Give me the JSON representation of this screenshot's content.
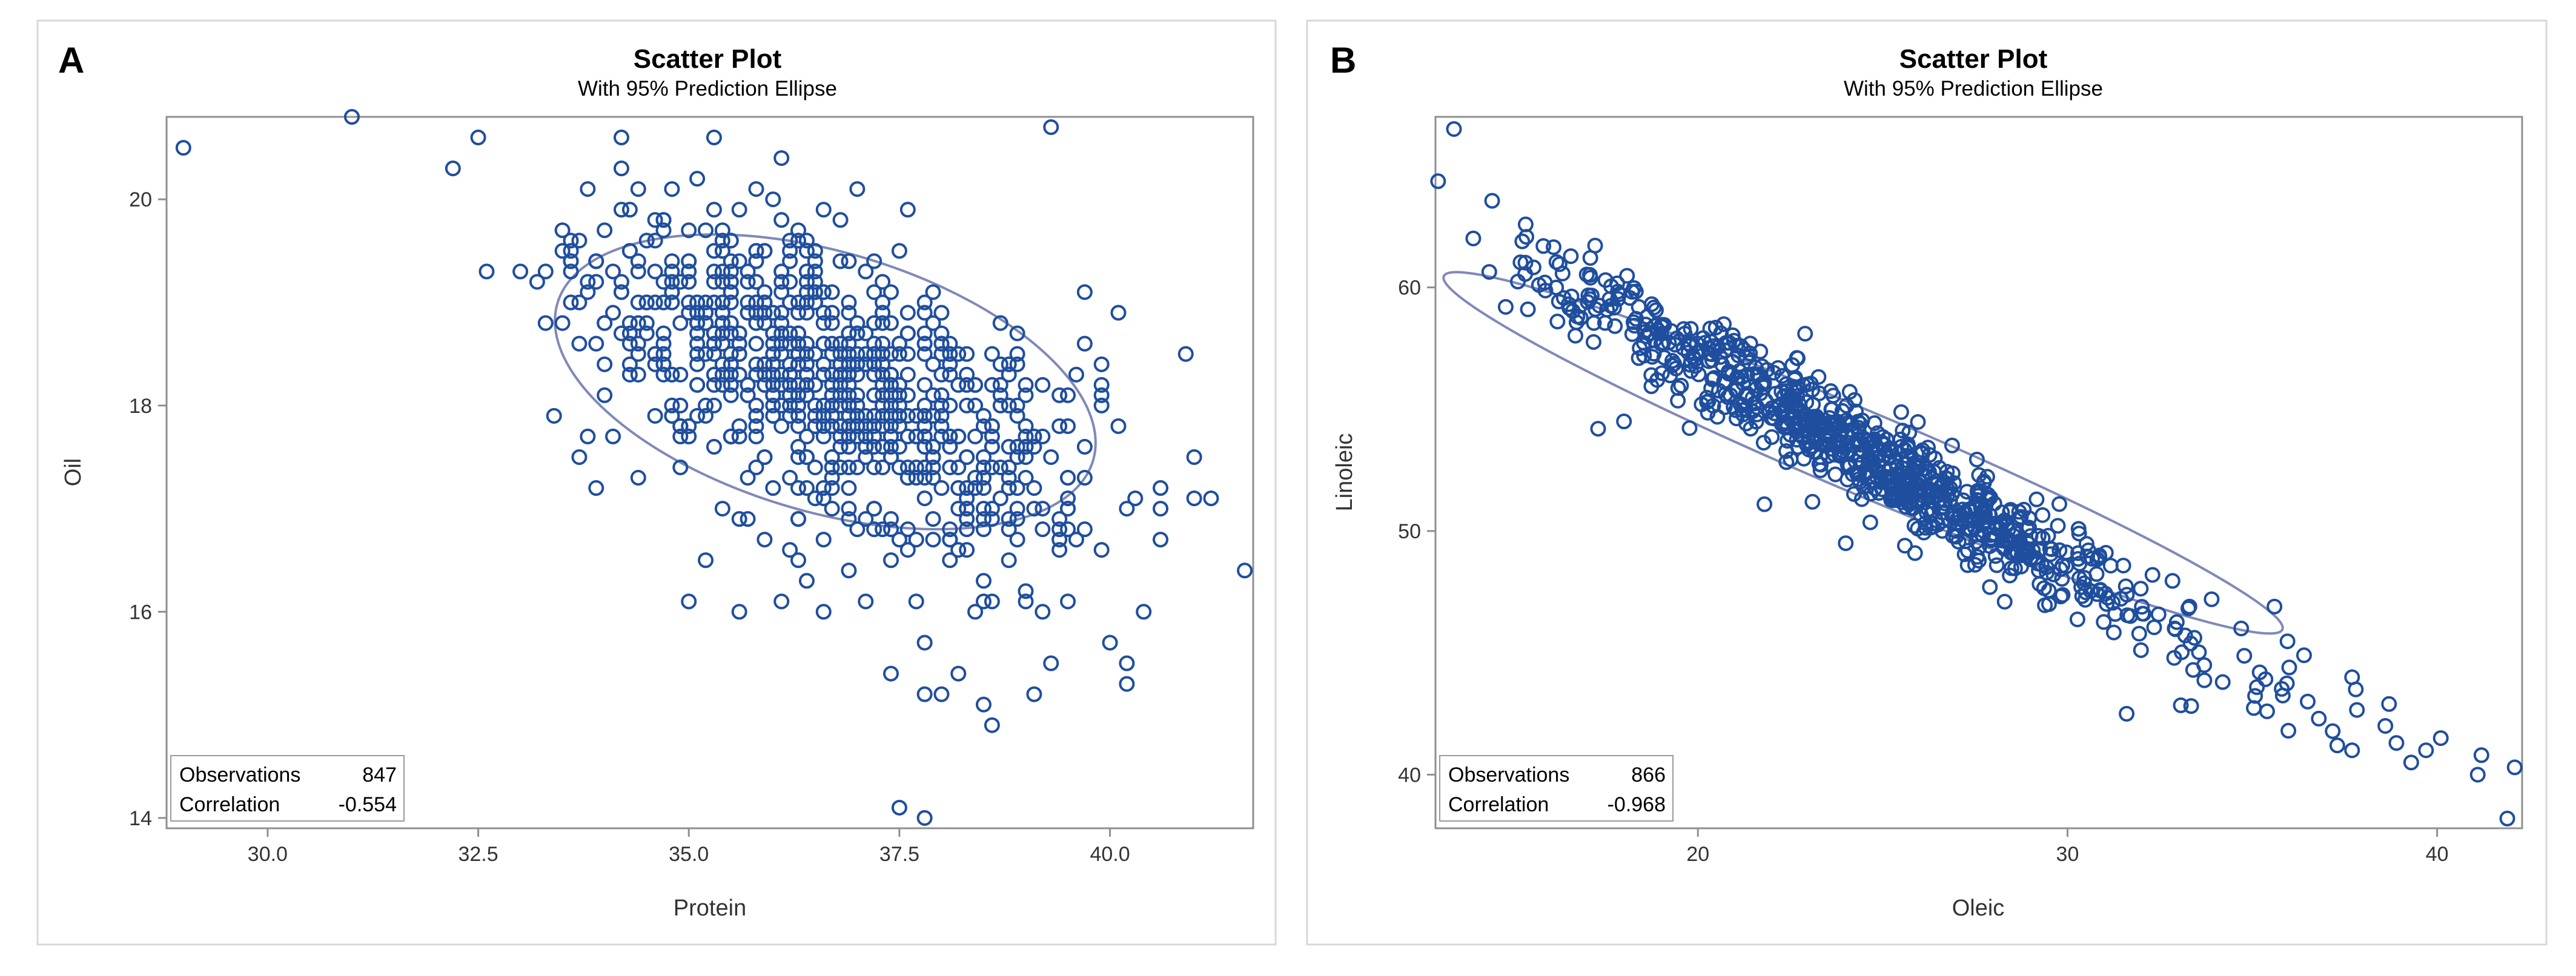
{
  "chart_data": [
    {
      "panel_letter": "A",
      "type": "scatter",
      "title": "Scatter Plot",
      "subtitle": "With 95% Prediction Ellipse",
      "xlabel": "Protein",
      "ylabel": "Oil",
      "xlim": [
        28.8,
        41.7
      ],
      "ylim": [
        13.9,
        20.8
      ],
      "xticks": [
        "30.0",
        "32.5",
        "35.0",
        "37.5",
        "40.0"
      ],
      "yticks": [
        "14",
        "16",
        "18",
        "20"
      ],
      "ellipse": {
        "center": [
          36.62,
          18.23
        ],
        "rx": 3.55,
        "ry": 2.2,
        "angle": -33
      },
      "stats": [
        {
          "label": "Observations",
          "value": "847"
        },
        {
          "label": "Correlation",
          "value": "-0.554"
        }
      ],
      "observations": 847,
      "correlation": -0.554,
      "marker_color": "#1f4e9e",
      "ellipse_color": "#7f89b8",
      "points": [
        [
          29.0,
          20.5
        ],
        [
          39.3,
          20.7
        ],
        [
          41.6,
          16.4
        ],
        [
          40.9,
          18.5
        ],
        [
          41.2,
          17.1
        ],
        [
          40.6,
          17.2
        ],
        [
          40.6,
          16.7
        ],
        [
          40.2,
          17.0
        ],
        [
          40.1,
          17.8
        ],
        [
          39.9,
          18.4
        ],
        [
          39.9,
          18.2
        ],
        [
          39.7,
          17.6
        ],
        [
          39.7,
          16.8
        ],
        [
          40.0,
          15.7
        ],
        [
          40.2,
          15.5
        ],
        [
          40.2,
          15.3
        ],
        [
          39.5,
          16.1
        ],
        [
          39.3,
          15.5
        ],
        [
          39.1,
          15.2
        ],
        [
          38.6,
          14.9
        ],
        [
          38.5,
          15.1
        ],
        [
          38.2,
          15.4
        ],
        [
          38.0,
          15.2
        ],
        [
          37.8,
          15.2
        ],
        [
          37.8,
          14.0
        ],
        [
          37.5,
          14.1
        ],
        [
          37.4,
          15.4
        ],
        [
          37.8,
          15.7
        ],
        [
          37.7,
          16.1
        ],
        [
          38.4,
          16.0
        ],
        [
          33.2,
          19.2
        ],
        [
          33.5,
          19.5
        ],
        [
          33.7,
          19.6
        ],
        [
          33.9,
          19.2
        ],
        [
          33.7,
          17.5
        ],
        [
          33.8,
          17.7
        ],
        [
          34.0,
          18.4
        ],
        [
          34.4,
          17.3
        ],
        [
          34.0,
          19.7
        ],
        [
          34.3,
          19.9
        ],
        [
          35.0,
          16.1
        ],
        [
          35.2,
          16.5
        ],
        [
          35.6,
          16.0
        ],
        [
          36.1,
          16.1
        ],
        [
          36.6,
          16.0
        ],
        [
          37.1,
          16.1
        ],
        [
          36.4,
          16.3
        ],
        [
          35.8,
          20.1
        ],
        [
          36.0,
          20.0
        ],
        [
          37.0,
          20.1
        ],
        [
          36.8,
          19.8
        ],
        [
          35.6,
          19.9
        ],
        [
          35.3,
          19.9
        ],
        [
          34.7,
          19.8
        ],
        [
          34.9,
          17.4
        ],
        [
          35.4,
          17.0
        ],
        [
          35.9,
          16.7
        ],
        [
          36.3,
          16.9
        ],
        [
          36.9,
          16.4
        ],
        [
          37.4,
          16.5
        ],
        [
          38.3,
          17.0
        ],
        [
          38.8,
          16.5
        ],
        [
          39.0,
          16.2
        ],
        [
          38.6,
          16.1
        ],
        [
          39.2,
          17.0
        ],
        [
          39.0,
          17.5
        ],
        [
          39.4,
          17.8
        ],
        [
          38.1,
          16.7
        ],
        [
          37.9,
          16.9
        ],
        [
          37.6,
          16.8
        ],
        [
          36.2,
          16.6
        ],
        [
          35.6,
          16.9
        ],
        [
          34.6,
          17.9
        ],
        [
          34.3,
          18.6
        ],
        [
          34.1,
          18.9
        ],
        [
          34.2,
          19.1
        ],
        [
          34.0,
          18.8
        ],
        [
          33.6,
          19.0
        ]
      ]
    },
    {
      "panel_letter": "B",
      "type": "scatter",
      "title": "Scatter Plot",
      "subtitle": "With 95% Prediction Ellipse",
      "xlabel": "Oleic",
      "ylabel": "Linoleic",
      "xlim": [
        12.9,
        42.3
      ],
      "ylim": [
        37.8,
        67.0
      ],
      "xticks": [
        "20",
        "30",
        "40"
      ],
      "yticks": [
        "40",
        "50",
        "60"
      ],
      "ellipse": {
        "center": [
          24.47,
          53.21
        ],
        "rx": 13.5,
        "ry": 1.55,
        "angle": -33
      },
      "stats": [
        {
          "label": "Observations",
          "value": "866"
        },
        {
          "label": "Correlation",
          "value": "-0.968"
        }
      ],
      "observations": 866,
      "correlation": -0.968,
      "marker_color": "#1f4e9e",
      "ellipse_color": "#7f89b8",
      "points": [
        [
          13.4,
          66.5
        ],
        [
          14.8,
          59.2
        ],
        [
          15.4,
          59.1
        ],
        [
          15.7,
          60.1
        ],
        [
          16.2,
          58.6
        ],
        [
          17.3,
          54.2
        ],
        [
          18.0,
          54.5
        ],
        [
          17.5,
          60.3
        ],
        [
          18.4,
          59.2
        ],
        [
          41.9,
          38.2
        ],
        [
          42.1,
          40.3
        ],
        [
          41.2,
          40.8
        ],
        [
          41.1,
          40.0
        ],
        [
          40.1,
          41.5
        ],
        [
          39.7,
          41.0
        ],
        [
          39.3,
          40.5
        ],
        [
          38.9,
          41.3
        ],
        [
          38.6,
          42.0
        ],
        [
          38.7,
          42.9
        ],
        [
          37.8,
          43.5
        ],
        [
          37.7,
          44.0
        ],
        [
          37.7,
          41.0
        ],
        [
          37.3,
          41.2
        ],
        [
          36.8,
          42.3
        ],
        [
          36.5,
          43.0
        ],
        [
          36.4,
          44.9
        ],
        [
          36.0,
          44.4
        ],
        [
          35.6,
          46.9
        ],
        [
          35.4,
          42.6
        ],
        [
          35.2,
          44.2
        ],
        [
          34.7,
          46.0
        ],
        [
          33.9,
          47.2
        ],
        [
          33.3,
          46.9
        ],
        [
          32.9,
          46.0
        ],
        [
          32.3,
          48.2
        ],
        [
          31.6,
          42.5
        ],
        [
          33.4,
          44.3
        ],
        [
          34.2,
          43.8
        ],
        [
          27.9,
          47.7
        ],
        [
          27.3,
          48.6
        ],
        [
          25.6,
          49.4
        ],
        [
          26.9,
          49.8
        ],
        [
          24.0,
          49.5
        ],
        [
          23.1,
          51.2
        ],
        [
          21.8,
          51.1
        ],
        [
          20.1,
          55.2
        ],
        [
          18.4,
          57.1
        ],
        [
          18.9,
          56.2
        ],
        [
          22.9,
          58.1
        ],
        [
          28.3,
          47.1
        ],
        [
          29.5,
          47.0
        ]
      ]
    }
  ]
}
